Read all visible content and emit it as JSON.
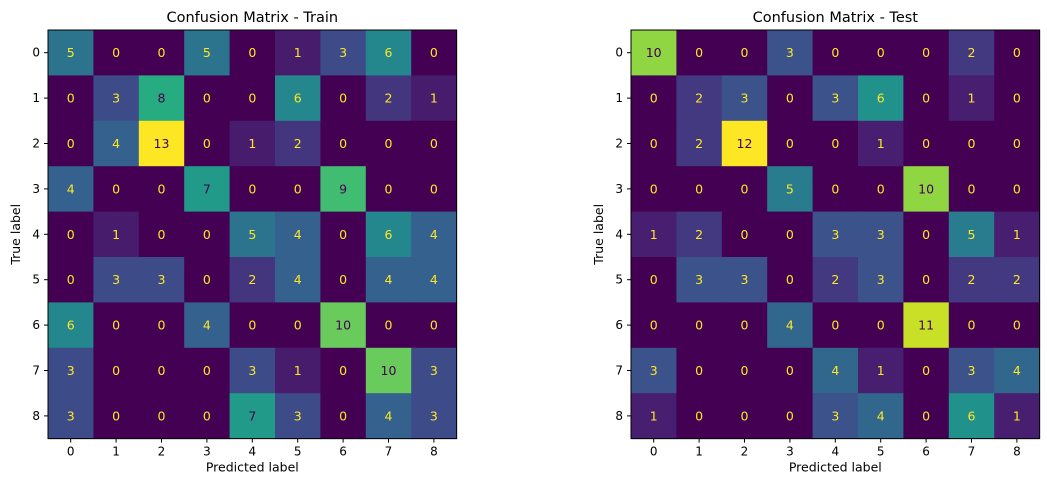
{
  "chart_data": [
    {
      "type": "heatmap",
      "title": "Confusion Matrix - Train",
      "xlabel": "Predicted label",
      "ylabel": "True label",
      "x_ticks": [
        "0",
        "1",
        "2",
        "3",
        "4",
        "5",
        "6",
        "7",
        "8"
      ],
      "y_ticks": [
        "0",
        "1",
        "2",
        "3",
        "4",
        "5",
        "6",
        "7",
        "8"
      ],
      "colormap": "viridis",
      "vmin": 0,
      "vmax": 13,
      "values": [
        [
          5,
          0,
          0,
          5,
          0,
          1,
          3,
          6,
          0
        ],
        [
          0,
          3,
          8,
          0,
          0,
          6,
          0,
          2,
          1
        ],
        [
          0,
          4,
          13,
          0,
          1,
          2,
          0,
          0,
          0
        ],
        [
          4,
          0,
          0,
          7,
          0,
          0,
          9,
          0,
          0
        ],
        [
          0,
          1,
          0,
          0,
          5,
          4,
          0,
          6,
          4
        ],
        [
          0,
          3,
          3,
          0,
          2,
          4,
          0,
          4,
          4
        ],
        [
          6,
          0,
          0,
          4,
          0,
          0,
          10,
          0,
          0
        ],
        [
          3,
          0,
          0,
          0,
          3,
          1,
          0,
          10,
          3
        ],
        [
          3,
          0,
          0,
          0,
          7,
          3,
          0,
          4,
          3
        ]
      ]
    },
    {
      "type": "heatmap",
      "title": "Confusion Matrix - Test",
      "xlabel": "Predicted label",
      "ylabel": "True label",
      "x_ticks": [
        "0",
        "1",
        "2",
        "3",
        "4",
        "5",
        "6",
        "7",
        "8"
      ],
      "y_ticks": [
        "0",
        "1",
        "2",
        "3",
        "4",
        "5",
        "6",
        "7",
        "8"
      ],
      "colormap": "viridis",
      "vmin": 0,
      "vmax": 12,
      "values": [
        [
          10,
          0,
          0,
          3,
          0,
          0,
          0,
          2,
          0
        ],
        [
          0,
          2,
          3,
          0,
          3,
          6,
          0,
          1,
          0
        ],
        [
          0,
          2,
          12,
          0,
          0,
          1,
          0,
          0,
          0
        ],
        [
          0,
          0,
          0,
          5,
          0,
          0,
          10,
          0,
          0
        ],
        [
          1,
          2,
          0,
          0,
          3,
          3,
          0,
          5,
          1
        ],
        [
          0,
          3,
          3,
          0,
          2,
          3,
          0,
          2,
          2
        ],
        [
          0,
          0,
          0,
          4,
          0,
          0,
          11,
          0,
          0
        ],
        [
          3,
          0,
          0,
          0,
          4,
          1,
          0,
          3,
          4
        ],
        [
          1,
          0,
          0,
          0,
          3,
          4,
          0,
          6,
          1
        ]
      ]
    }
  ]
}
